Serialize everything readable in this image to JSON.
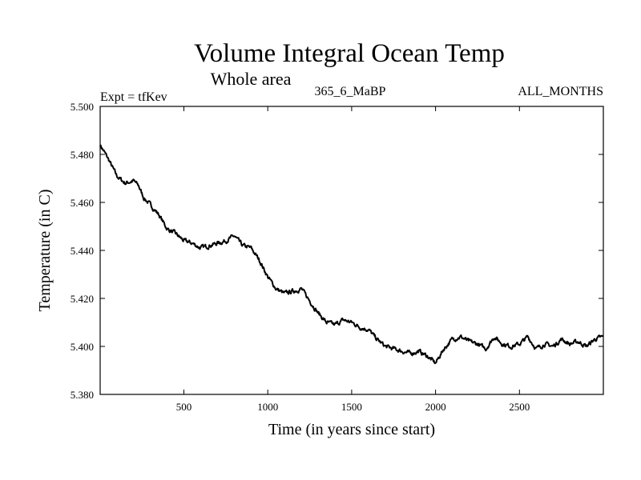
{
  "chart_data": {
    "type": "line",
    "title": "Volume Integral Ocean Temp",
    "subtitle": "Whole area",
    "left_label": "Expt = tfKev",
    "center_label": "365_6_MaBP",
    "right_label": "ALL_MONTHS",
    "xlabel": "Time (in years since start)",
    "ylabel": "Temperature (in C)",
    "xlim": [
      1,
      3000
    ],
    "ylim": [
      5.38,
      5.5
    ],
    "x_ticks": [
      500,
      1000,
      1500,
      2000,
      2500
    ],
    "x_tick_labels": [
      "500",
      "1000",
      "1500",
      "2000",
      "2500"
    ],
    "y_ticks": [
      5.38,
      5.4,
      5.42,
      5.44,
      5.46,
      5.48,
      5.5
    ],
    "y_tick_labels": [
      "5.380",
      "5.400",
      "5.420",
      "5.440",
      "5.460",
      "5.480",
      "5.500"
    ],
    "grid": false,
    "line_color": "#000000",
    "series": [
      {
        "x": [
          1,
          50,
          100,
          150,
          200,
          230,
          260,
          300,
          350,
          400,
          450,
          500,
          550,
          600,
          650,
          700,
          750,
          800,
          850,
          900,
          950,
          1000,
          1050,
          1100,
          1150,
          1200,
          1250,
          1300,
          1350,
          1400,
          1450,
          1500,
          1550,
          1600,
          1650,
          1700,
          1750,
          1800,
          1850,
          1900,
          1950,
          2000,
          2050,
          2100,
          2150,
          2200,
          2250,
          2300,
          2350,
          2400,
          2450,
          2500,
          2550,
          2600,
          2650,
          2700,
          2750,
          2800,
          2850,
          2900,
          2950,
          3000
        ],
        "y": [
          5.484,
          5.478,
          5.471,
          5.468,
          5.469,
          5.467,
          5.462,
          5.459,
          5.455,
          5.449,
          5.447,
          5.444,
          5.443,
          5.441,
          5.442,
          5.443,
          5.444,
          5.446,
          5.442,
          5.441,
          5.436,
          5.429,
          5.424,
          5.422,
          5.423,
          5.424,
          5.419,
          5.414,
          5.41,
          5.409,
          5.411,
          5.41,
          5.408,
          5.407,
          5.403,
          5.4,
          5.399,
          5.398,
          5.397,
          5.398,
          5.396,
          5.393,
          5.399,
          5.403,
          5.404,
          5.402,
          5.401,
          5.399,
          5.404,
          5.401,
          5.4,
          5.401,
          5.404,
          5.399,
          5.401,
          5.4,
          5.403,
          5.401,
          5.402,
          5.4,
          5.403,
          5.404
        ]
      }
    ]
  }
}
